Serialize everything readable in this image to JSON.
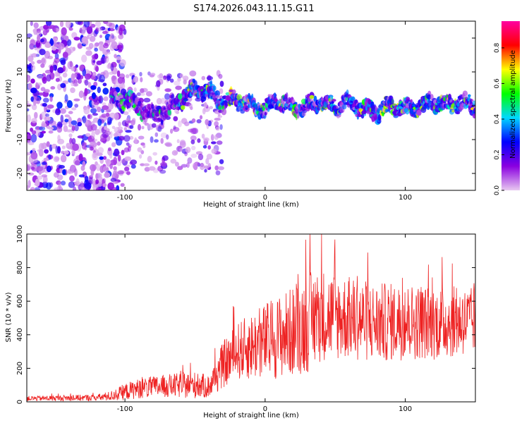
{
  "title": "S174.2026.043.11.15.G11",
  "chart_data": [
    {
      "type": "heatmap",
      "name": "spectrogram",
      "xlabel": "Height of straight line (km)",
      "ylabel": "Frequency (Hz)",
      "xlim": [
        -170,
        150
      ],
      "ylim": [
        -25,
        25
      ],
      "xticks": [
        -100,
        0,
        100
      ],
      "yticks": [
        -20,
        -10,
        0,
        10,
        20
      ],
      "ridge": {
        "x": [
          -170,
          -150,
          -120,
          -100,
          -90,
          -80,
          -70,
          -60,
          -50,
          -40,
          -30,
          -20,
          -10,
          0,
          10,
          20,
          30,
          40,
          50,
          60,
          70,
          80,
          90,
          100,
          110,
          120,
          130,
          140,
          150
        ],
        "freq": [
          0,
          0,
          1,
          2,
          0,
          -3,
          -1,
          2,
          5,
          4,
          1,
          2,
          0,
          -1,
          2,
          -1,
          0,
          1,
          0,
          1,
          -1,
          -2,
          0,
          -1,
          0,
          1,
          0,
          1,
          0
        ]
      },
      "colorbar": {
        "label": "Normalized spectral amplitude",
        "range": [
          0.0,
          0.95
        ],
        "ticks": [
          "0.0",
          "0.2",
          "0.4",
          "0.6",
          "0.8"
        ],
        "colors": [
          "#e8c8f0",
          "#8a00e0",
          "#0000ff",
          "#00d8ff",
          "#00ff00",
          "#ffff00",
          "#ff0000",
          "#ff00a0"
        ]
      }
    },
    {
      "type": "line",
      "name": "snr",
      "xlabel": "Height of straight line (km)",
      "ylabel": "SNR (10 * v/v)",
      "xlim": [
        -170,
        150
      ],
      "ylim": [
        0,
        1000
      ],
      "xticks": [
        -100,
        0,
        100
      ],
      "yticks": [
        0,
        200,
        400,
        600,
        800,
        1000
      ],
      "color": "#ee2222",
      "envelope": {
        "x": [
          -170,
          -120,
          -110,
          -100,
          -90,
          -70,
          -50,
          -40,
          -30,
          -20,
          -10,
          0,
          10,
          20,
          30,
          40,
          60,
          80,
          100,
          120,
          140,
          150
        ],
        "mean": [
          20,
          25,
          35,
          60,
          80,
          95,
          100,
          90,
          220,
          300,
          330,
          360,
          390,
          420,
          470,
          520,
          500,
          470,
          480,
          470,
          480,
          480
        ],
        "amp": [
          15,
          20,
          30,
          50,
          60,
          70,
          80,
          70,
          140,
          170,
          200,
          230,
          250,
          270,
          300,
          280,
          250,
          240,
          230,
          220,
          210,
          200
        ]
      }
    }
  ]
}
